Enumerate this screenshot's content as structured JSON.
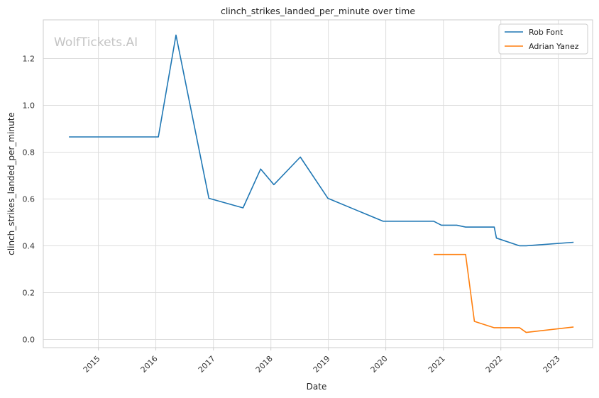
{
  "chart_data": {
    "type": "line",
    "title": "clinch_strikes_landed_per_minute over time",
    "xlabel": "Date",
    "ylabel": "clinch_strikes_landed_per_minute",
    "watermark": "WolfTickets.AI",
    "x_ticks": [
      "2015",
      "2016",
      "2017",
      "2018",
      "2019",
      "2020",
      "2021",
      "2022",
      "2023"
    ],
    "y_ticks": [
      "0.0",
      "0.2",
      "0.4",
      "0.6",
      "0.8",
      "1.0",
      "1.2"
    ],
    "xlim": [
      "2014-01-16",
      "2023-08-07"
    ],
    "ylim": [
      -0.035,
      1.365
    ],
    "grid": true,
    "legend_position": "top-right",
    "series": [
      {
        "name": "Rob Font",
        "color": "#1f77b4",
        "points": [
          {
            "x": "2014-06-28",
            "y": 0.865
          },
          {
            "x": "2016-01-17",
            "y": 0.865
          },
          {
            "x": "2016-05-08",
            "y": 1.3
          },
          {
            "x": "2016-12-03",
            "y": 0.603
          },
          {
            "x": "2017-07-08",
            "y": 0.562
          },
          {
            "x": "2017-10-28",
            "y": 0.728
          },
          {
            "x": "2018-01-20",
            "y": 0.661
          },
          {
            "x": "2018-07-07",
            "y": 0.779
          },
          {
            "x": "2018-12-29",
            "y": 0.603
          },
          {
            "x": "2019-12-14",
            "y": 0.505
          },
          {
            "x": "2020-10-31",
            "y": 0.505
          },
          {
            "x": "2020-12-19",
            "y": 0.488
          },
          {
            "x": "2021-03-27",
            "y": 0.488
          },
          {
            "x": "2021-05-22",
            "y": 0.48
          },
          {
            "x": "2021-11-20",
            "y": 0.48
          },
          {
            "x": "2021-12-04",
            "y": 0.433
          },
          {
            "x": "2022-04-30",
            "y": 0.4
          },
          {
            "x": "2022-06-11",
            "y": 0.4
          },
          {
            "x": "2023-04-08",
            "y": 0.415
          }
        ]
      },
      {
        "name": "Adrian Yanez",
        "color": "#ff7f0e",
        "points": [
          {
            "x": "2020-10-31",
            "y": 0.363
          },
          {
            "x": "2021-05-22",
            "y": 0.363
          },
          {
            "x": "2021-07-17",
            "y": 0.077
          },
          {
            "x": "2021-11-20",
            "y": 0.05
          },
          {
            "x": "2022-04-30",
            "y": 0.05
          },
          {
            "x": "2022-06-11",
            "y": 0.03
          },
          {
            "x": "2023-04-08",
            "y": 0.053
          }
        ]
      }
    ]
  }
}
